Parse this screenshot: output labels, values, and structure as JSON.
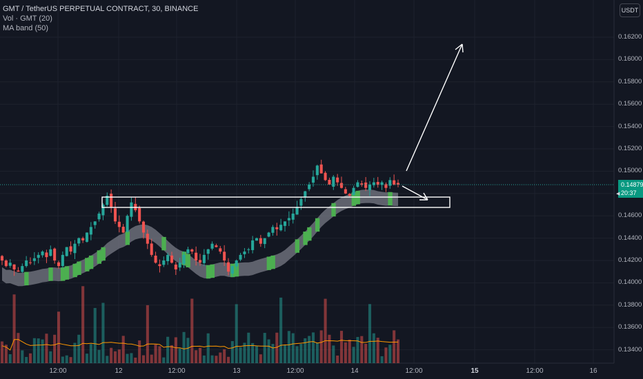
{
  "legend": {
    "symbol": "GMT / TetherUS PERPETUAL CONTRACT, 30, BINANCE",
    "volume": "Vol · GMT (20)",
    "ma_band": "MA band (50)"
  },
  "currency_button": "USDT",
  "last_price": {
    "value": "0.14879",
    "countdown": "20:37"
  },
  "colors": {
    "up": "#26a69a",
    "down": "#ef5350",
    "band": "#787b86",
    "band_up": "#4caf50",
    "volume_ma": "#ff9800",
    "background": "#131722"
  },
  "price_axis": [
    "0.16200",
    "0.16000",
    "0.15800",
    "0.15600",
    "0.15400",
    "0.15200",
    "0.15000",
    "0.14600",
    "0.14400",
    "0.14200",
    "0.14000",
    "0.13800",
    "0.13600",
    "0.13400"
  ],
  "time_axis": [
    {
      "label": "12:00",
      "bold": false
    },
    {
      "label": "12",
      "bold": false
    },
    {
      "label": "12:00",
      "bold": false
    },
    {
      "label": "13",
      "bold": false
    },
    {
      "label": "12:00",
      "bold": false
    },
    {
      "label": "14",
      "bold": false
    },
    {
      "label": "12:00",
      "bold": false
    },
    {
      "label": "15",
      "bold": true
    },
    {
      "label": "12:00",
      "bold": false
    },
    {
      "label": "16",
      "bold": false
    }
  ],
  "chart_data": {
    "type": "candlestick",
    "symbol": "GMT/USDT perpetual",
    "interval": "30",
    "ylim": [
      0.1333,
      0.164
    ],
    "candles_close": [
      0.142,
      0.1415,
      0.1418,
      0.1412,
      0.141,
      0.1415,
      0.142,
      0.1418,
      0.1422,
      0.1425,
      0.1428,
      0.1423,
      0.143,
      0.142,
      0.1415,
      0.1425,
      0.1432,
      0.1428,
      0.1435,
      0.144,
      0.1438,
      0.1445,
      0.145,
      0.1455,
      0.1462,
      0.147,
      0.1478,
      0.1468,
      0.1455,
      0.145,
      0.1445,
      0.146,
      0.1472,
      0.1465,
      0.1455,
      0.1445,
      0.1435,
      0.1425,
      0.1418,
      0.1415,
      0.142,
      0.1425,
      0.1418,
      0.1412,
      0.1418,
      0.1425,
      0.143,
      0.1428,
      0.142,
      0.1418,
      0.1425,
      0.143,
      0.1435,
      0.1432,
      0.1428,
      0.142,
      0.141,
      0.1415,
      0.142,
      0.1425,
      0.1428,
      0.143,
      0.1438,
      0.144,
      0.1435,
      0.144,
      0.1445,
      0.145,
      0.1448,
      0.1452,
      0.1455,
      0.1458,
      0.1462,
      0.1468,
      0.1475,
      0.1482,
      0.1488,
      0.1495,
      0.1505,
      0.1498,
      0.1492,
      0.1488,
      0.1495,
      0.149,
      0.1485,
      0.148,
      0.1478,
      0.1485,
      0.149,
      0.1488,
      0.1485,
      0.1488,
      0.149,
      0.1488,
      0.149,
      0.1485,
      0.1492,
      0.1488,
      0.1488
    ],
    "volume_ma_length": 20,
    "ma_band_length": 50
  }
}
